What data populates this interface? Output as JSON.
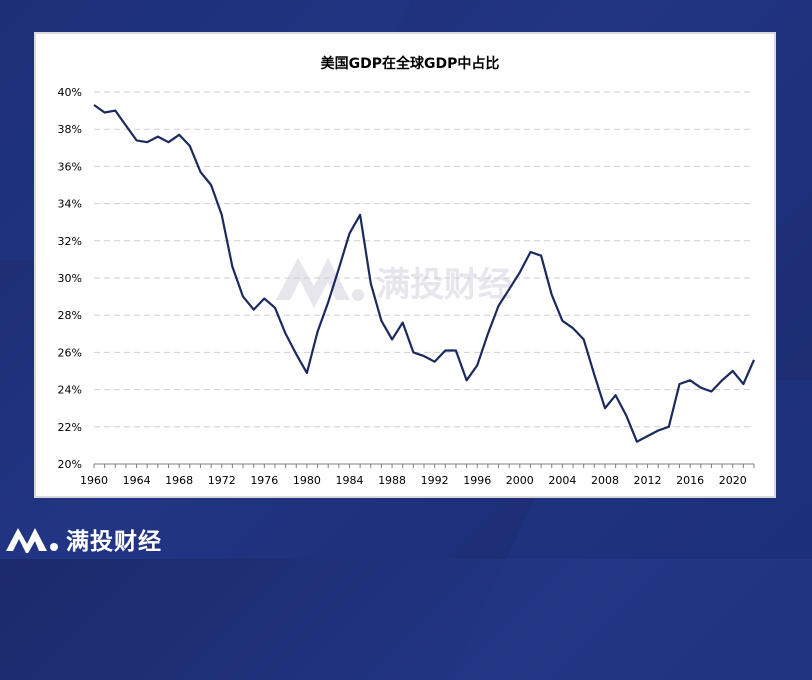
{
  "brand": {
    "name": "满投财经",
    "watermark": "满投财经"
  },
  "colors": {
    "line": "#1b2a5e",
    "grid": "#cfcfcf",
    "text": "#000000",
    "watermark": "#e4e4ea"
  },
  "chart_data": {
    "type": "line",
    "title": "美国GDP在全球GDP中占比",
    "xlabel": "",
    "ylabel": "",
    "grid": true,
    "xlim": [
      1960,
      2022
    ],
    "ylim": [
      0.2,
      0.4
    ],
    "x_ticks": [
      1960,
      1964,
      1968,
      1972,
      1976,
      1980,
      1984,
      1988,
      1992,
      1996,
      2000,
      2004,
      2008,
      2012,
      2016,
      2020
    ],
    "x_tick_labels": [
      "1960",
      "1964",
      "1968",
      "1972",
      "1976",
      "1980",
      "1984",
      "1988",
      "1992",
      "1996",
      "2000",
      "2004",
      "2008",
      "2012",
      "2016",
      "2020"
    ],
    "y_ticks": [
      0.2,
      0.22,
      0.24,
      0.26,
      0.28,
      0.3,
      0.32,
      0.34,
      0.36,
      0.38,
      0.4
    ],
    "y_tick_labels": [
      "20%",
      "22%",
      "24%",
      "26%",
      "28%",
      "30%",
      "32%",
      "34%",
      "36%",
      "38%",
      "40%"
    ],
    "series": [
      {
        "x": [
          1960,
          1961,
          1962,
          1963,
          1964,
          1965,
          1966,
          1967,
          1968,
          1969,
          1970,
          1971,
          1972,
          1973,
          1974,
          1975,
          1976,
          1977,
          1978,
          1979,
          1980,
          1981,
          1982,
          1983,
          1984,
          1985,
          1986,
          1987,
          1988,
          1989,
          1990,
          1991,
          1992,
          1993,
          1994,
          1995,
          1996,
          1997,
          1998,
          1999,
          2000,
          2001,
          2002,
          2003,
          2004,
          2005,
          2006,
          2007,
          2008,
          2009,
          2010,
          2011,
          2012,
          2013,
          2014,
          2015,
          2016,
          2017,
          2018,
          2019,
          2020,
          2021,
          2022
        ],
        "values": [
          0.393,
          0.389,
          0.39,
          0.382,
          0.374,
          0.373,
          0.376,
          0.373,
          0.377,
          0.371,
          0.357,
          0.35,
          0.334,
          0.306,
          0.29,
          0.283,
          0.289,
          0.284,
          0.27,
          0.259,
          0.249,
          0.271,
          0.287,
          0.305,
          0.324,
          0.334,
          0.297,
          0.277,
          0.267,
          0.276,
          0.26,
          0.258,
          0.255,
          0.261,
          0.261,
          0.245,
          0.253,
          0.27,
          0.285,
          0.294,
          0.303,
          0.314,
          0.312,
          0.291,
          0.277,
          0.273,
          0.267,
          0.248,
          0.23,
          0.237,
          0.226,
          0.212,
          0.215,
          0.218,
          0.22,
          0.243,
          0.245,
          0.241,
          0.239,
          0.245,
          0.25,
          0.243,
          0.256
        ]
      }
    ]
  }
}
